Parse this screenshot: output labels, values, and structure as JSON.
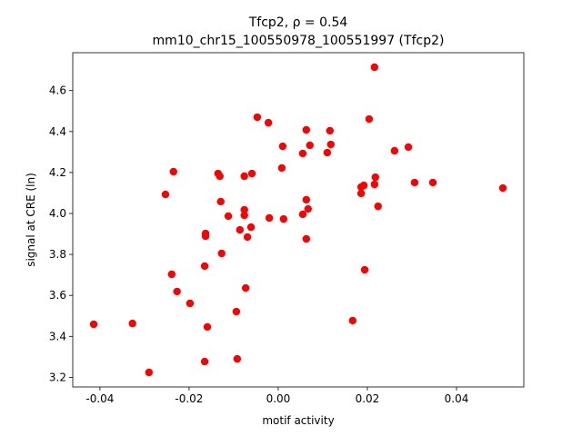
{
  "chart_data": {
    "type": "scatter",
    "title": "Tfcp2, ρ = 0.54",
    "subtitle": "mm10_chr15_100550978_100551997 (Tfcp2)",
    "x_label": "motif activity",
    "y_label": "signal at CRE (ln)",
    "color": "#ff0000",
    "xlim": [
      -0.0461,
      0.0551
    ],
    "ylim": [
      3.153,
      4.785
    ],
    "xticks": [
      -0.04,
      -0.02,
      {
        "value": 0,
        "label": "0.00"
      },
      0.02,
      0.04
    ],
    "yticks": [
      3.2,
      3.4,
      3.6,
      3.8,
      {
        "value": 4,
        "label": "4.0"
      },
      4.2,
      4.4,
      4.6
    ],
    "x": [
      0.0216,
      -0.0047,
      -0.0022,
      0.0063,
      0.0116,
      0.0204,
      0.001,
      0.0071,
      0.0118,
      0.0261,
      0.0292,
      0.0055,
      0.011,
      -0.0235,
      -0.0135,
      -0.0131,
      -0.0076,
      -0.0059,
      0.0008,
      0.0218,
      0.0306,
      0.0347,
      0.0504,
      0.0186,
      0.0192,
      0.0216,
      0.0186,
      -0.0253,
      -0.0129,
      0.0063,
      0.0067,
      -0.0076,
      -0.0076,
      -0.0112,
      -0.002,
      0.0012,
      0.0055,
      0.0224,
      -0.0061,
      -0.0086,
      -0.0163,
      -0.0163,
      -0.0069,
      0.0063,
      -0.0127,
      -0.0165,
      0.0194,
      -0.0239,
      -0.0073,
      -0.0227,
      -0.0198,
      -0.0094,
      -0.0414,
      -0.0327,
      -0.0159,
      0.0167,
      -0.029,
      -0.0092,
      -0.0165
    ],
    "values": [
      4.714,
      4.47,
      4.443,
      4.408,
      4.404,
      4.461,
      4.328,
      4.333,
      4.337,
      4.306,
      4.324,
      4.293,
      4.297,
      4.204,
      4.195,
      4.182,
      4.182,
      4.195,
      4.222,
      4.177,
      4.151,
      4.151,
      4.124,
      4.129,
      4.137,
      4.142,
      4.098,
      4.093,
      4.058,
      4.067,
      4.022,
      4.018,
      3.991,
      3.987,
      3.978,
      3.973,
      3.996,
      4.035,
      3.933,
      3.92,
      3.902,
      3.889,
      3.885,
      3.876,
      3.805,
      3.743,
      3.725,
      3.703,
      3.636,
      3.619,
      3.561,
      3.521,
      3.459,
      3.463,
      3.446,
      3.477,
      3.224,
      3.29,
      3.277
    ]
  }
}
